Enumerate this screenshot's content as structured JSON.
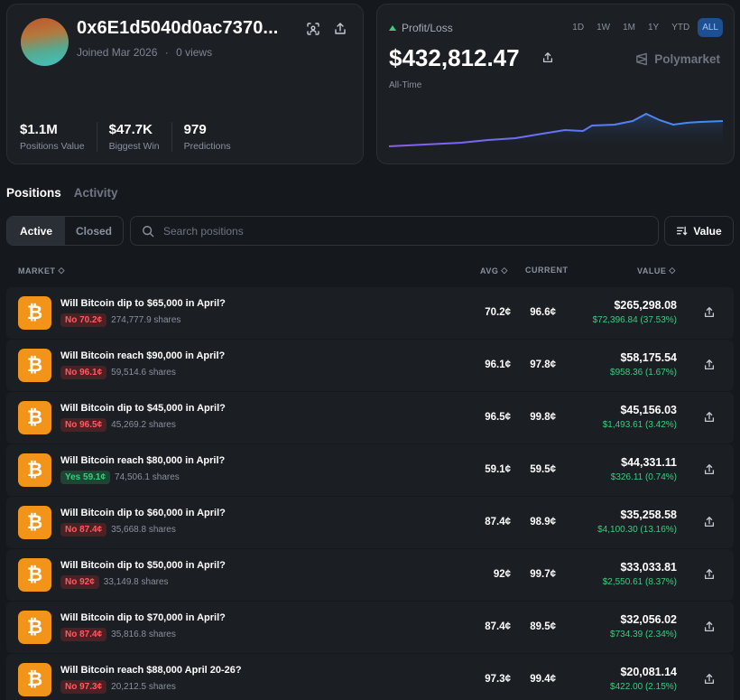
{
  "profile": {
    "address": "0x6E1d5040d0ac7370...",
    "joined": "Joined Mar 2026",
    "separator": "·",
    "views": "0 views",
    "stats": [
      {
        "value": "$1.1M",
        "label": "Positions Value"
      },
      {
        "value": "$47.7K",
        "label": "Biggest Win"
      },
      {
        "value": "979",
        "label": "Predictions"
      }
    ]
  },
  "pnl": {
    "label": "Profit/Loss",
    "ranges": [
      "1D",
      "1W",
      "1M",
      "1Y",
      "YTD",
      "ALL"
    ],
    "active_range": "ALL",
    "value": "$432,812.47",
    "brand": "Polymarket",
    "period": "All-Time",
    "colors": {
      "line_start": "#8a5cf0",
      "line_end": "#3b8ff5",
      "up": "#3ccb7f"
    }
  },
  "tabs": [
    "Positions",
    "Activity"
  ],
  "filters": {
    "active": "Active",
    "closed": "Closed"
  },
  "search": {
    "placeholder": "Search positions"
  },
  "sort": {
    "label": "Value"
  },
  "columns": {
    "market": "MARKET",
    "avg": "AVG",
    "current": "CURRENT",
    "value": "VALUE"
  },
  "positions": [
    {
      "question": "Will Bitcoin dip to $65,000 in April?",
      "side": "No",
      "pill": "No 70.2¢",
      "shares": "274,777.9 shares",
      "avg": "70.2¢",
      "current": "96.6¢",
      "value": "$265,298.08",
      "gain": "$72,396.84 (37.53%)"
    },
    {
      "question": "Will Bitcoin reach $90,000 in April?",
      "side": "No",
      "pill": "No 96.1¢",
      "shares": "59,514.6 shares",
      "avg": "96.1¢",
      "current": "97.8¢",
      "value": "$58,175.54",
      "gain": "$958.36 (1.67%)"
    },
    {
      "question": "Will Bitcoin dip to $45,000 in April?",
      "side": "No",
      "pill": "No 96.5¢",
      "shares": "45,269.2 shares",
      "avg": "96.5¢",
      "current": "99.8¢",
      "value": "$45,156.03",
      "gain": "$1,493.61 (3.42%)"
    },
    {
      "question": "Will Bitcoin reach $80,000 in April?",
      "side": "Yes",
      "pill": "Yes 59.1¢",
      "shares": "74,506.1 shares",
      "avg": "59.1¢",
      "current": "59.5¢",
      "value": "$44,331.11",
      "gain": "$326.11 (0.74%)"
    },
    {
      "question": "Will Bitcoin dip to $60,000 in April?",
      "side": "No",
      "pill": "No 87.4¢",
      "shares": "35,668.8 shares",
      "avg": "87.4¢",
      "current": "98.9¢",
      "value": "$35,258.58",
      "gain": "$4,100.30 (13.16%)"
    },
    {
      "question": "Will Bitcoin dip to $50,000 in April?",
      "side": "No",
      "pill": "No 92¢",
      "shares": "33,149.8 shares",
      "avg": "92¢",
      "current": "99.7¢",
      "value": "$33,033.81",
      "gain": "$2,550.61 (8.37%)"
    },
    {
      "question": "Will Bitcoin dip to $70,000 in April?",
      "side": "No",
      "pill": "No 87.4¢",
      "shares": "35,816.8 shares",
      "avg": "87.4¢",
      "current": "89.5¢",
      "value": "$32,056.02",
      "gain": "$734.39 (2.34%)"
    },
    {
      "question": "Will Bitcoin reach $88,000 April 20-26?",
      "side": "No",
      "pill": "No 97.3¢",
      "shares": "20,212.5 shares",
      "avg": "97.3¢",
      "current": "99.4¢",
      "value": "$20,081.14",
      "gain": "$422.00 (2.15%)"
    }
  ]
}
